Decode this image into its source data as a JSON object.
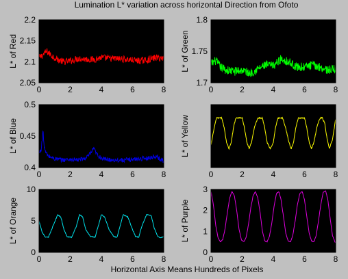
{
  "figure": {
    "title": "Lumination L* variation across horizontal Direction from Ofoto",
    "footnote": "Horizontal Axis Means Hundreds of Pixels",
    "background": "#c0c0c0"
  },
  "chart_data": [
    {
      "id": "red",
      "type": "line",
      "ylabel": "L* of Red",
      "color": "#ff0000",
      "xlim": [
        0,
        8
      ],
      "ylim": [
        2.05,
        2.2
      ],
      "xticks": [
        0,
        2,
        4,
        6,
        8
      ],
      "yticks": [
        2.05,
        2.1,
        2.15,
        2.2
      ],
      "ytick_labels": [
        "2.05",
        "2.1",
        "2.15",
        "2.2"
      ],
      "series": [
        {
          "noise": 0.008,
          "x": [
            0,
            0.2,
            0.5,
            0.8,
            1.2,
            1.6,
            2.0,
            2.5,
            3.0,
            3.5,
            4.0,
            4.5,
            5.0,
            5.5,
            6.0,
            6.5,
            7.0,
            7.5,
            8.0
          ],
          "y": [
            2.11,
            2.115,
            2.125,
            2.115,
            2.105,
            2.1,
            2.102,
            2.108,
            2.106,
            2.105,
            2.11,
            2.108,
            2.107,
            2.106,
            2.104,
            2.102,
            2.105,
            2.11,
            2.108
          ]
        }
      ]
    },
    {
      "id": "green",
      "type": "line",
      "ylabel": "L* of Green",
      "color": "#00ff00",
      "xlim": [
        0,
        8
      ],
      "ylim": [
        1.7,
        1.8
      ],
      "xticks": [
        0,
        2,
        4,
        6,
        8
      ],
      "yticks": [
        1.7,
        1.75,
        1.8
      ],
      "ytick_labels": [
        "1.7",
        "1.75",
        "1.8"
      ],
      "series": [
        {
          "noise": 0.007,
          "x": [
            0,
            0.3,
            0.6,
            1.0,
            1.5,
            2.0,
            2.5,
            3.0,
            3.5,
            4.0,
            4.5,
            5.0,
            5.5,
            6.0,
            6.5,
            7.0,
            7.5,
            8.0
          ],
          "y": [
            1.73,
            1.735,
            1.725,
            1.72,
            1.718,
            1.72,
            1.715,
            1.722,
            1.728,
            1.727,
            1.738,
            1.733,
            1.725,
            1.725,
            1.728,
            1.725,
            1.72,
            1.722
          ]
        }
      ]
    },
    {
      "id": "blue",
      "type": "line",
      "ylabel": "L* of Blue",
      "color": "#0000e0",
      "xlim": [
        0,
        8
      ],
      "ylim": [
        0.4,
        0.5
      ],
      "xticks": [
        0,
        2,
        4,
        6,
        8
      ],
      "yticks": [
        0.4,
        0.45,
        0.5
      ],
      "ytick_labels": [
        "0.4",
        "0.45",
        "0.5"
      ],
      "series": [
        {
          "noise": 0.0035,
          "x": [
            0,
            0.15,
            0.25,
            0.3,
            0.4,
            0.6,
            1.0,
            1.5,
            2.0,
            2.5,
            3.0,
            3.3,
            3.5,
            3.8,
            4.2,
            4.8,
            5.5,
            6.0,
            6.5,
            7.0,
            7.5,
            8.0
          ],
          "y": [
            0.422,
            0.43,
            0.46,
            0.44,
            0.425,
            0.418,
            0.414,
            0.412,
            0.413,
            0.412,
            0.415,
            0.422,
            0.43,
            0.418,
            0.413,
            0.412,
            0.412,
            0.413,
            0.414,
            0.415,
            0.418,
            0.41
          ]
        }
      ]
    },
    {
      "id": "yellow",
      "type": "line",
      "ylabel": "L* of Yellow",
      "color": "#ffff00",
      "xlim": [
        0,
        8
      ],
      "ylim": [
        4,
        8
      ],
      "xticks": [
        0,
        2,
        4,
        6,
        8
      ],
      "yticks": [],
      "ytick_labels": [],
      "series": [
        {
          "noise": 0.04,
          "x": [
            0,
            0.2,
            0.35,
            0.5,
            0.7,
            0.85,
            1.0,
            1.15,
            1.3,
            1.45,
            1.6,
            1.8,
            2.0,
            2.15,
            2.3,
            2.45,
            2.6,
            2.8,
            3.0,
            3.15,
            3.3,
            3.45,
            3.6,
            3.8,
            4.0,
            4.15,
            4.3,
            4.45,
            4.6,
            4.8,
            5.0,
            5.15,
            5.3,
            5.45,
            5.6,
            5.8,
            6.0,
            6.15,
            6.3,
            6.45,
            6.6,
            6.8,
            7.0,
            7.15,
            7.3,
            7.45,
            7.6,
            7.8,
            8.0
          ],
          "y": [
            5.4,
            6.5,
            7.15,
            7.15,
            7.15,
            6.5,
            5.6,
            5.2,
            5.6,
            6.6,
            7.15,
            7.15,
            7.15,
            6.5,
            5.6,
            5.2,
            5.6,
            6.6,
            7.15,
            7.15,
            7.15,
            6.5,
            5.6,
            5.2,
            5.6,
            6.6,
            7.15,
            7.15,
            7.15,
            6.5,
            5.6,
            5.2,
            5.6,
            6.6,
            7.15,
            7.15,
            7.15,
            6.5,
            5.6,
            5.2,
            5.6,
            6.6,
            7.15,
            7.15,
            6.8,
            5.8,
            5.2,
            5.8,
            7.1
          ]
        }
      ]
    },
    {
      "id": "orange",
      "type": "line",
      "ylabel": "L* of Orange",
      "color": "#00e5ee",
      "xlim": [
        0,
        8
      ],
      "ylim": [
        0,
        10
      ],
      "xticks": [
        0,
        2,
        4,
        6,
        8
      ],
      "yticks": [
        0,
        5,
        10
      ],
      "ytick_labels": [
        "0",
        "5",
        "10"
      ],
      "series": [
        {
          "noise": 0.06,
          "x": [
            0,
            0.2,
            0.4,
            0.6,
            0.9,
            1.2,
            1.4,
            1.6,
            1.8,
            2.1,
            2.4,
            2.6,
            2.8,
            3.0,
            3.3,
            3.6,
            3.8,
            4.0,
            4.2,
            4.5,
            4.8,
            5.0,
            5.2,
            5.4,
            5.7,
            6.0,
            6.2,
            6.4,
            6.6,
            6.9,
            7.2,
            7.4,
            7.6,
            7.8,
            8.0
          ],
          "y": [
            5.0,
            3.2,
            2.4,
            2.4,
            4.2,
            6.0,
            5.6,
            3.6,
            2.5,
            2.4,
            4.2,
            6.0,
            5.6,
            3.6,
            2.5,
            2.4,
            4.2,
            6.0,
            5.6,
            3.6,
            2.5,
            2.4,
            4.2,
            6.0,
            5.6,
            3.6,
            2.5,
            2.4,
            4.2,
            6.0,
            5.8,
            3.8,
            2.6,
            2.3,
            2.5
          ]
        }
      ]
    },
    {
      "id": "purple",
      "type": "line",
      "ylabel": "L* of Purple",
      "color": "#e000e0",
      "xlim": [
        0,
        8
      ],
      "ylim": [
        0,
        3
      ],
      "xticks": [
        0,
        2,
        4,
        6,
        8
      ],
      "yticks": [
        0,
        1,
        2,
        3
      ],
      "ytick_labels": [
        "0",
        "1",
        "2",
        "3"
      ],
      "series": [
        {
          "noise": 0.015,
          "x": [
            0,
            0.15,
            0.3,
            0.45,
            0.6,
            0.75,
            0.9,
            1.05,
            1.2,
            1.35,
            1.5,
            1.65,
            1.8,
            1.95,
            2.1,
            2.25,
            2.4,
            2.55,
            2.7,
            2.85,
            3.0,
            3.15,
            3.3,
            3.45,
            3.6,
            3.75,
            3.9,
            4.05,
            4.2,
            4.35,
            4.5,
            4.65,
            4.8,
            4.95,
            5.1,
            5.25,
            5.4,
            5.55,
            5.7,
            5.85,
            6.0,
            6.15,
            6.3,
            6.45,
            6.6,
            6.75,
            6.9,
            7.05,
            7.2,
            7.35,
            7.5,
            7.65,
            7.8,
            7.95,
            8.0
          ],
          "y": [
            2.9,
            2.3,
            1.3,
            0.7,
            0.5,
            0.6,
            1.1,
            1.9,
            2.6,
            2.9,
            2.7,
            2.0,
            1.1,
            0.6,
            0.5,
            0.7,
            1.3,
            2.1,
            2.7,
            2.9,
            2.6,
            1.9,
            1.0,
            0.55,
            0.5,
            0.75,
            1.4,
            2.2,
            2.8,
            2.9,
            2.5,
            1.7,
            0.9,
            0.55,
            0.5,
            0.8,
            1.5,
            2.3,
            2.8,
            2.9,
            2.5,
            1.7,
            0.9,
            0.55,
            0.5,
            0.8,
            1.5,
            2.3,
            2.85,
            2.95,
            2.5,
            1.6,
            0.8,
            0.5,
            0.45
          ]
        }
      ]
    }
  ]
}
